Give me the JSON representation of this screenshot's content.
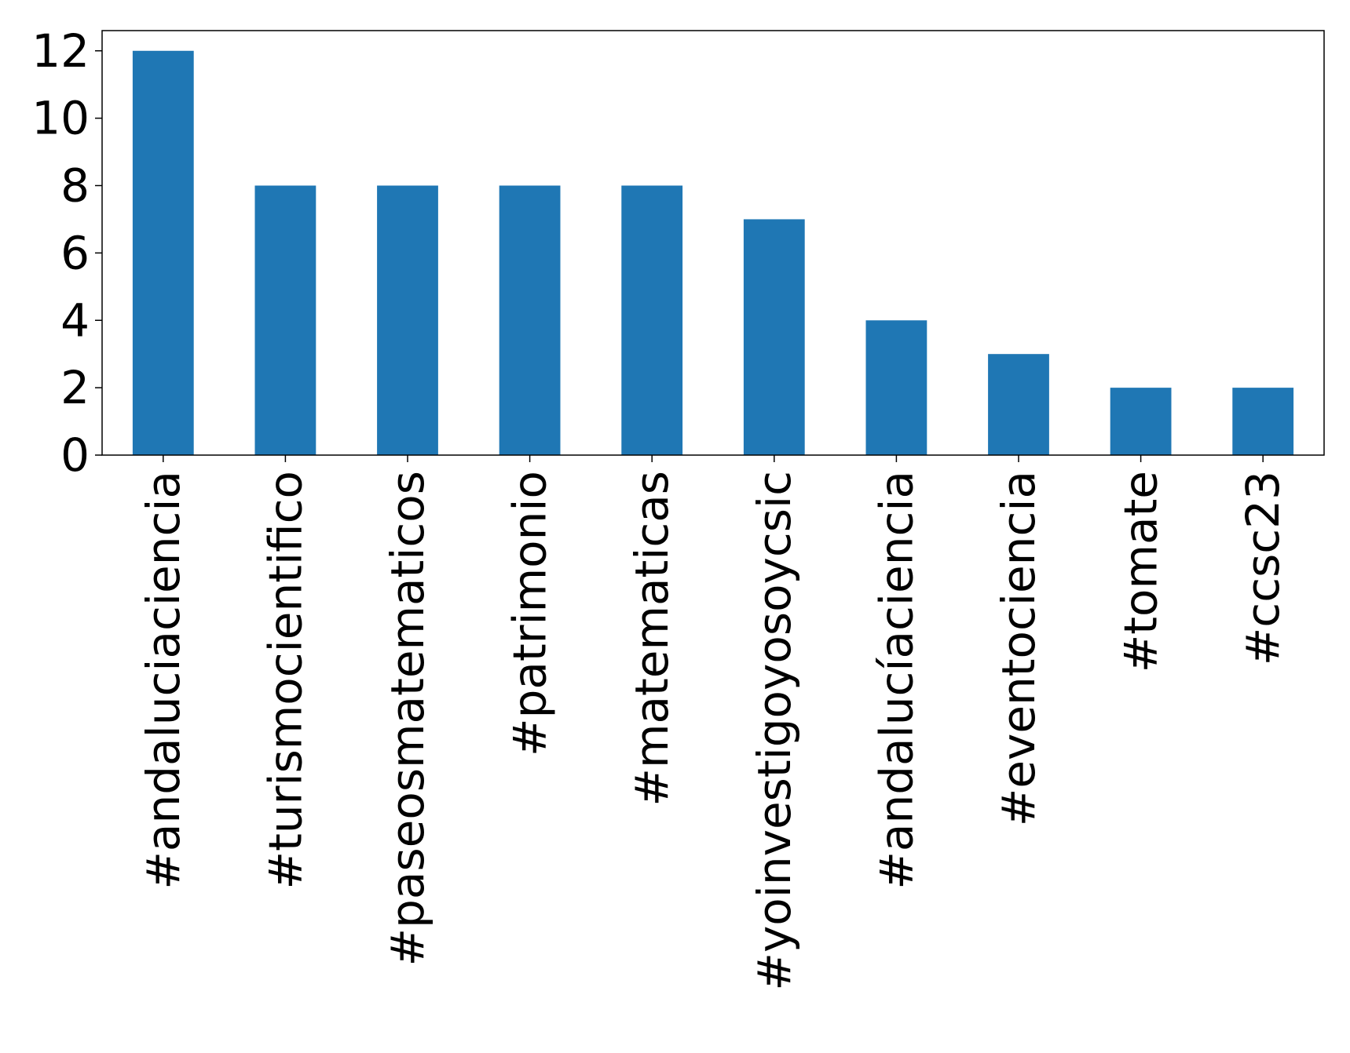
{
  "chart_data": {
    "type": "bar",
    "title": "",
    "xlabel": "",
    "ylabel": "",
    "categories": [
      "#andaluciaciencia",
      "#turismocientifico",
      "#paseosmatematicos",
      "#patrimonio",
      "#matematicas",
      "#yoinvestigoyosoycsic",
      "#andalucíaciencia",
      "#eventociencia",
      "#tomate",
      "#ccsc23"
    ],
    "values": [
      12,
      8,
      8,
      8,
      8,
      7,
      4,
      3,
      2,
      2
    ],
    "ylim": [
      0,
      12.6
    ],
    "yticks": [
      0,
      2,
      4,
      6,
      8,
      10,
      12
    ],
    "bar_color": "#1f77b4",
    "grid": false,
    "legend": "none"
  }
}
